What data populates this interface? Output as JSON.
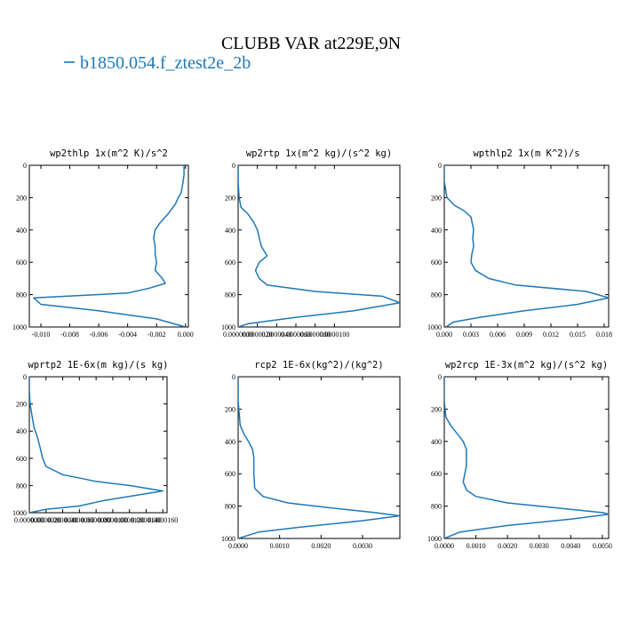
{
  "figure": {
    "title": "CLUBB VAR at229E,9N",
    "legend": {
      "label": "b1850.054.f_ztest2e_2b",
      "color": "#1f77b4",
      "marker": "—"
    }
  },
  "chart_data": [
    {
      "type": "line",
      "title": "wp2thlp  1x(m^2 K)/s^2",
      "series": [
        {
          "name": "b1850.054.f_ztest2e_2b",
          "x": [
            -0.0001,
            -0.0001,
            -0.0002,
            -0.0003,
            -0.0005,
            -0.0007,
            -0.0012,
            -0.0018,
            -0.0021,
            -0.0022,
            -0.0021,
            -0.0021,
            -0.002,
            -0.0021,
            -0.0016,
            -0.0014,
            -0.0025,
            -0.004,
            -0.0105,
            -0.01,
            -0.006,
            -0.002,
            0.0
          ],
          "y": [
            0,
            60,
            120,
            170,
            200,
            240,
            300,
            360,
            400,
            450,
            500,
            550,
            600,
            650,
            700,
            730,
            760,
            790,
            820,
            860,
            900,
            950,
            1000
          ]
        }
      ],
      "xlim": [
        -0.0108,
        0.0002
      ],
      "ylim": [
        1000,
        0
      ],
      "xticks": [
        "-0.010",
        "-0.008",
        "-0.006",
        "-0.004",
        "-0.002",
        "0.000"
      ],
      "xtick_values": [
        -0.01,
        -0.008,
        -0.006,
        -0.004,
        -0.002,
        0.0
      ],
      "yticks": [
        "0",
        "200",
        "400",
        "600",
        "800",
        "1000"
      ],
      "ytick_values": [
        0,
        200,
        400,
        600,
        800,
        1000
      ]
    },
    {
      "type": "line",
      "title": "wp2rtp  1x(m^2 kg)/(s^2 kg)",
      "series": [
        {
          "name": "b1850.054.f_ztest2e_2b",
          "x": [
            0.0,
            0.0,
            1e-07,
            3e-07,
            1e-06,
            1.6e-06,
            2e-06,
            2.2e-06,
            2.4e-06,
            3e-06,
            2.2e-06,
            1.8e-06,
            2.2e-06,
            3e-06,
            8e-06,
            1.5e-05,
            1.68e-05,
            1.2e-05,
            6e-06,
            1e-06,
            0.0
          ],
          "y": [
            0,
            100,
            200,
            260,
            300,
            350,
            400,
            450,
            500,
            560,
            600,
            650,
            700,
            740,
            780,
            810,
            850,
            900,
            940,
            980,
            1000
          ]
        }
      ],
      "xlim": [
        0.0,
        1.68e-05
      ],
      "ylim": [
        1000,
        0
      ],
      "xticks": [
        "0.0000000",
        "0.0000020",
        "0.0000040",
        "0.0000060",
        "0.0000080",
        "0.0000100"
      ],
      "xtick_values": [
        0.0,
        2e-06,
        4e-06,
        6e-06,
        8e-06,
        1e-05
      ],
      "yticks": [
        "0",
        "200",
        "400",
        "600",
        "800",
        "1000"
      ],
      "ytick_values": [
        0,
        200,
        400,
        600,
        800,
        1000
      ]
    },
    {
      "type": "line",
      "title": "wpthlp2  1x(m K^2)/s",
      "series": [
        {
          "name": "b1850.054.f_ztest2e_2b",
          "x": [
            0.0,
            0.0,
            0.0003,
            0.0012,
            0.0022,
            0.003,
            0.0033,
            0.0032,
            0.0033,
            0.0031,
            0.003,
            0.0035,
            0.005,
            0.008,
            0.016,
            0.0185,
            0.015,
            0.009,
            0.004,
            0.001,
            0.0002
          ],
          "y": [
            0,
            100,
            200,
            250,
            280,
            320,
            400,
            450,
            500,
            550,
            600,
            650,
            700,
            740,
            780,
            820,
            860,
            900,
            940,
            970,
            1000
          ]
        }
      ],
      "xlim": [
        0.0,
        0.0185
      ],
      "ylim": [
        1000,
        0
      ],
      "xticks": [
        "0.000",
        "0.003",
        "0.006",
        "0.009",
        "0.012",
        "0.015",
        "0.018"
      ],
      "xtick_values": [
        0.0,
        0.003,
        0.006,
        0.009,
        0.012,
        0.015,
        0.018
      ],
      "yticks": [
        "0",
        "200",
        "400",
        "600",
        "800",
        "1000"
      ],
      "ytick_values": [
        0,
        200,
        400,
        600,
        800,
        1000
      ]
    },
    {
      "type": "line",
      "title": "wprtp2  1E-6x(m kg)/(s kg)",
      "series": [
        {
          "name": "b1850.054.f_ztest2e_2b",
          "x": [
            0.0,
            0.0,
            1e-07,
            3e-07,
            6e-07,
            1e-06,
            1.4e-06,
            1.6e-06,
            2e-06,
            4e-06,
            8e-06,
            1.2e-05,
            1.6e-05,
            1.2e-05,
            9e-06,
            6e-06,
            2e-06,
            0.0
          ],
          "y": [
            0,
            100,
            200,
            280,
            380,
            450,
            550,
            600,
            660,
            720,
            770,
            800,
            840,
            880,
            910,
            950,
            975,
            1000
          ]
        }
      ],
      "xlim": [
        0.0,
        1.65e-05
      ],
      "ylim": [
        1000,
        0
      ],
      "xticks": [
        "0.0000000",
        "0.0000020",
        "0.0000040",
        "0.0000060",
        "0.0000080",
        "0.0000100",
        "0.0000120",
        "0.0000140",
        "0.0000160"
      ],
      "xtick_values": [
        0.0,
        2e-06,
        4e-06,
        6e-06,
        8e-06,
        1e-05,
        1.2e-05,
        1.4e-05,
        1.6e-05
      ],
      "yticks": [
        "0",
        "200",
        "400",
        "600",
        "800",
        "1000"
      ],
      "ytick_values": [
        0,
        200,
        400,
        600,
        800,
        1000
      ]
    },
    {
      "type": "line",
      "title": "rcp2  1E-6x(kg^2)/(kg^2)",
      "series": [
        {
          "name": "b1850.054.f_ztest2e_2b",
          "x": [
            0.0,
            0.0,
            5e-05,
            0.00015,
            0.00025,
            0.00035,
            0.00038,
            0.00038,
            0.0004,
            0.0006,
            0.0012,
            0.0022,
            0.0033,
            0.0039,
            0.003,
            0.0015,
            0.0005,
            0.0
          ],
          "y": [
            0,
            150,
            300,
            360,
            400,
            450,
            500,
            600,
            690,
            740,
            780,
            810,
            840,
            860,
            890,
            930,
            960,
            1000
          ]
        }
      ],
      "xlim": [
        0.0,
        0.0039
      ],
      "ylim": [
        1000,
        0
      ],
      "xticks": [
        "0.0000",
        "0.0010",
        "0.0020",
        "0.0030"
      ],
      "xtick_values": [
        0.0,
        0.001,
        0.002,
        0.003
      ],
      "yticks": [
        "0",
        "200",
        "400",
        "600",
        "800",
        "1000"
      ],
      "ytick_values": [
        0,
        200,
        400,
        600,
        800,
        1000
      ]
    },
    {
      "type": "line",
      "title": "wp2rcp  1E-3x(m^2 kg)/(s^2 kg)",
      "series": [
        {
          "name": "b1850.054.f_ztest2e_2b",
          "x": [
            0.0,
            0.0,
            5e-05,
            0.0002,
            0.0004,
            0.0006,
            0.0007,
            0.0007,
            0.0006,
            0.0007,
            0.001,
            0.002,
            0.0035,
            0.005,
            0.0052,
            0.004,
            0.002,
            0.0005,
            0.0
          ],
          "y": [
            0,
            150,
            250,
            300,
            350,
            400,
            450,
            550,
            650,
            700,
            740,
            780,
            810,
            840,
            850,
            880,
            920,
            960,
            1000
          ]
        }
      ],
      "xlim": [
        0.0,
        0.0052
      ],
      "ylim": [
        1000,
        0
      ],
      "xticks": [
        "0.0000",
        "0.0010",
        "0.0020",
        "0.0030",
        "0.0040",
        "0.0050"
      ],
      "xtick_values": [
        0.0,
        0.001,
        0.002,
        0.003,
        0.004,
        0.005
      ],
      "yticks": [
        "0",
        "200",
        "400",
        "600",
        "800",
        "1000"
      ],
      "ytick_values": [
        0,
        200,
        400,
        600,
        800,
        1000
      ]
    }
  ]
}
